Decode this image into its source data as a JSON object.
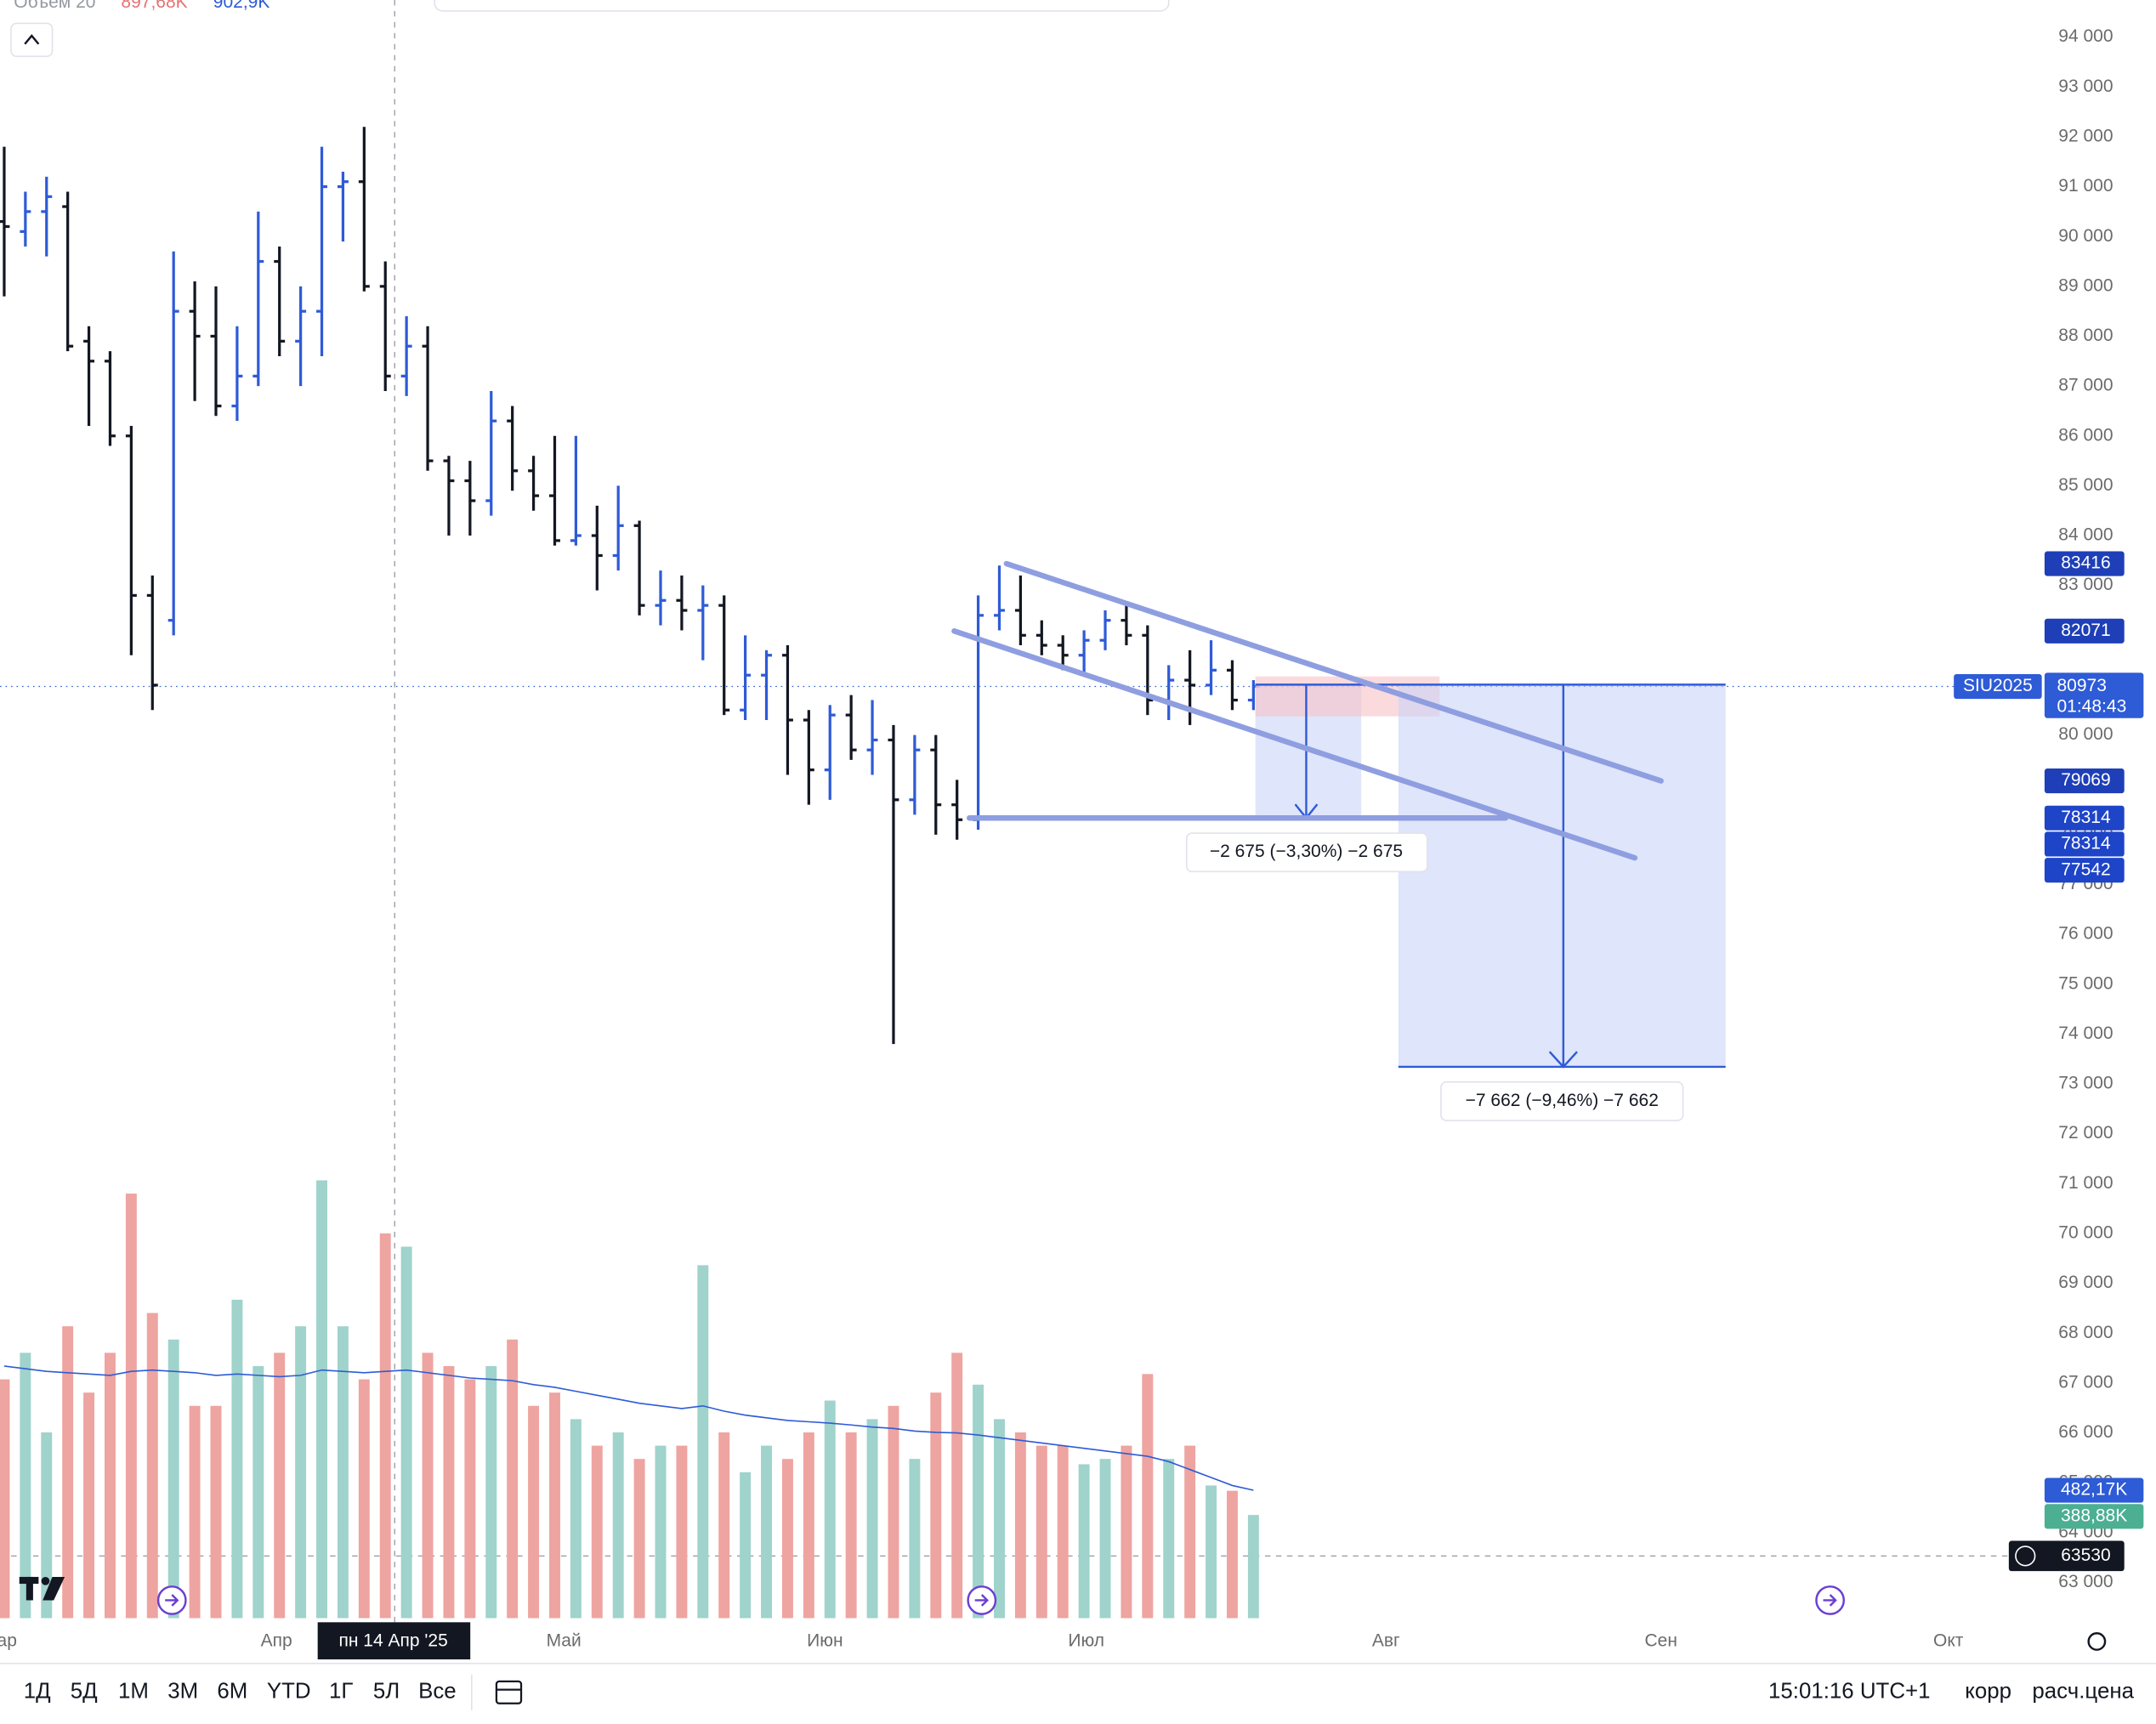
{
  "chart_data": {
    "type": "ohlc",
    "header": {
      "indicator": "Объем 20",
      "value_down": "897,68K",
      "value_up": "902,9K"
    },
    "ohlc": [
      [
        90300,
        91800,
        88800,
        90200
      ],
      [
        90100,
        90900,
        89800,
        90500
      ],
      [
        90500,
        91200,
        89600,
        90800
      ],
      [
        90600,
        90900,
        87700,
        87800
      ],
      [
        87900,
        88200,
        86200,
        87500
      ],
      [
        87500,
        87700,
        85800,
        86000
      ],
      [
        86000,
        86200,
        81600,
        82800
      ],
      [
        82800,
        83200,
        80500,
        81000
      ],
      [
        82300,
        89700,
        82000,
        88500
      ],
      [
        88500,
        89100,
        86700,
        88000
      ],
      [
        88000,
        89000,
        86400,
        86600
      ],
      [
        86600,
        88200,
        86300,
        87200
      ],
      [
        87200,
        90500,
        87000,
        89500
      ],
      [
        89500,
        89800,
        87600,
        87900
      ],
      [
        87900,
        89000,
        87000,
        88500
      ],
      [
        88500,
        91800,
        87600,
        91000
      ],
      [
        91000,
        91300,
        89900,
        91100
      ],
      [
        91100,
        92200,
        88900,
        89000
      ],
      [
        89000,
        89500,
        86900,
        87200
      ],
      [
        87200,
        88400,
        86800,
        87800
      ],
      [
        87800,
        88200,
        85300,
        85500
      ],
      [
        85500,
        85600,
        84000,
        85100
      ],
      [
        85100,
        85500,
        84000,
        84700
      ],
      [
        84700,
        86900,
        84400,
        86300
      ],
      [
        86300,
        86600,
        84900,
        85300
      ],
      [
        85300,
        85600,
        84500,
        84800
      ],
      [
        84800,
        86000,
        83800,
        83900
      ],
      [
        83900,
        86000,
        83800,
        84000
      ],
      [
        84000,
        84600,
        82900,
        83600
      ],
      [
        83600,
        85000,
        83300,
        84200
      ],
      [
        84200,
        84300,
        82400,
        82600
      ],
      [
        82600,
        83300,
        82200,
        82700
      ],
      [
        82700,
        83200,
        82100,
        82500
      ],
      [
        82500,
        83000,
        81500,
        82600
      ],
      [
        82600,
        82800,
        80400,
        80500
      ],
      [
        80500,
        82000,
        80300,
        81200
      ],
      [
        81200,
        81700,
        80300,
        81600
      ],
      [
        81600,
        81800,
        79200,
        80300
      ],
      [
        80300,
        80500,
        78600,
        79300
      ],
      [
        79300,
        80600,
        78700,
        80400
      ],
      [
        80400,
        80800,
        79500,
        79700
      ],
      [
        79700,
        80700,
        79200,
        79900
      ],
      [
        79900,
        80200,
        73800,
        78700
      ],
      [
        78700,
        80000,
        78400,
        79700
      ],
      [
        79700,
        80000,
        78000,
        78600
      ],
      [
        78600,
        79100,
        77900,
        78300
      ],
      [
        78300,
        82800,
        78100,
        82400
      ],
      [
        82400,
        83400,
        82100,
        82500
      ],
      [
        82500,
        83200,
        81800,
        82000
      ],
      [
        82000,
        82300,
        81600,
        81800
      ],
      [
        81800,
        82000,
        81300,
        81600
      ],
      [
        81600,
        82100,
        81200,
        81900
      ],
      [
        81900,
        82500,
        81700,
        82300
      ],
      [
        82300,
        82600,
        81800,
        82000
      ],
      [
        82000,
        82200,
        80400,
        80700
      ],
      [
        80700,
        81400,
        80300,
        81100
      ],
      [
        81100,
        81700,
        80200,
        81000
      ],
      [
        81000,
        81900,
        80800,
        81300
      ],
      [
        81300,
        81500,
        80500,
        80700
      ],
      [
        80700,
        81100,
        80500,
        80973
      ]
    ],
    "up_color": "#2e5bd6",
    "down_color": "#131722",
    "volume": [
      900,
      1000,
      700,
      1100,
      850,
      1000,
      1600,
      1150,
      1050,
      800,
      800,
      1200,
      950,
      1000,
      1100,
      1650,
      1100,
      900,
      1450,
      1400,
      1000,
      950,
      900,
      950,
      1050,
      800,
      850,
      750,
      650,
      700,
      600,
      650,
      650,
      1330,
      700,
      550,
      650,
      600,
      700,
      820,
      700,
      750,
      800,
      600,
      850,
      1000,
      880,
      750,
      700,
      650,
      650,
      580,
      600,
      650,
      920,
      600,
      650,
      500,
      480,
      388.88
    ],
    "volume_ma": [
      950,
      940,
      930,
      925,
      920,
      915,
      930,
      935,
      930,
      925,
      915,
      920,
      915,
      910,
      915,
      935,
      930,
      925,
      930,
      935,
      925,
      915,
      905,
      900,
      895,
      880,
      870,
      855,
      840,
      825,
      810,
      800,
      790,
      800,
      780,
      765,
      755,
      745,
      740,
      735,
      728,
      720,
      715,
      705,
      700,
      698,
      690,
      680,
      670,
      660,
      650,
      640,
      630,
      620,
      610,
      590,
      560,
      530,
      500,
      482.17
    ],
    "volume_up_color": "#9fd3cc",
    "volume_down_color": "#eea4a0",
    "volume_ma_color": "#2e5bd6",
    "ylim": [
      62900,
      94700
    ],
    "yticks": [
      {
        "value": 63000,
        "label": "63 000"
      },
      {
        "value": 64000,
        "label": "64 000"
      },
      {
        "value": 65000,
        "label": "65 000"
      },
      {
        "value": 66000,
        "label": "66 000"
      },
      {
        "value": 67000,
        "label": "67 000"
      },
      {
        "value": 68000,
        "label": "68 000"
      },
      {
        "value": 69000,
        "label": "69 000"
      },
      {
        "value": 70000,
        "label": "70 000"
      },
      {
        "value": 71000,
        "label": "71 000"
      },
      {
        "value": 72000,
        "label": "72 000"
      },
      {
        "value": 73000,
        "label": "73 000"
      },
      {
        "value": 74000,
        "label": "74 000"
      },
      {
        "value": 75000,
        "label": "75 000"
      },
      {
        "value": 76000,
        "label": "76 000"
      },
      {
        "value": 77000,
        "label": "77 000"
      },
      {
        "value": 78000,
        "label": "78 000"
      },
      {
        "value": 79000,
        "label": "79 000"
      },
      {
        "value": 80000,
        "label": "80 000"
      },
      {
        "value": 81000,
        "label": "81 000"
      },
      {
        "value": 82000,
        "label": "82 000"
      },
      {
        "value": 83000,
        "label": "83 000"
      },
      {
        "value": 84000,
        "label": "84 000"
      },
      {
        "value": 85000,
        "label": "85 000"
      },
      {
        "value": 86000,
        "label": "86 000"
      },
      {
        "value": 87000,
        "label": "87 000"
      },
      {
        "value": 88000,
        "label": "88 000"
      },
      {
        "value": 89000,
        "label": "89 000"
      },
      {
        "value": 90000,
        "label": "90 000"
      },
      {
        "value": 91000,
        "label": "91 000"
      },
      {
        "value": 92000,
        "label": "92 000"
      },
      {
        "value": 93000,
        "label": "93 000"
      },
      {
        "value": 94000,
        "label": "94 000"
      }
    ],
    "months": [
      "ар",
      "Апр",
      "Май",
      "Июн",
      "Июл",
      "Авг",
      "Сен",
      "Окт"
    ],
    "crosshair_date": "пн 14 Апр '25",
    "price_labels": [
      83416,
      82071,
      79069,
      78314,
      78314,
      77542
    ],
    "last_price": {
      "symbol": "SIU2025",
      "value": 80973,
      "countdown": "01:48:43"
    },
    "volume_labels": [
      {
        "value": 482.17,
        "label": "482,17K"
      },
      {
        "value": 388.88,
        "label": "388,88K"
      }
    ],
    "crosshair_price": 63530,
    "measure_short": "−2 675 (−3,30%) −2 675",
    "measure_long": "−7 662 (−9,46%) −7 662"
  },
  "toolbar": {
    "ranges": [
      "1Д",
      "5Д",
      "1М",
      "3М",
      "6М",
      "YTD",
      "1Г",
      "5Л",
      "Все"
    ],
    "time": "15:01:16 UTC+1",
    "adjust": "корр",
    "settlement": "расч.цена"
  }
}
